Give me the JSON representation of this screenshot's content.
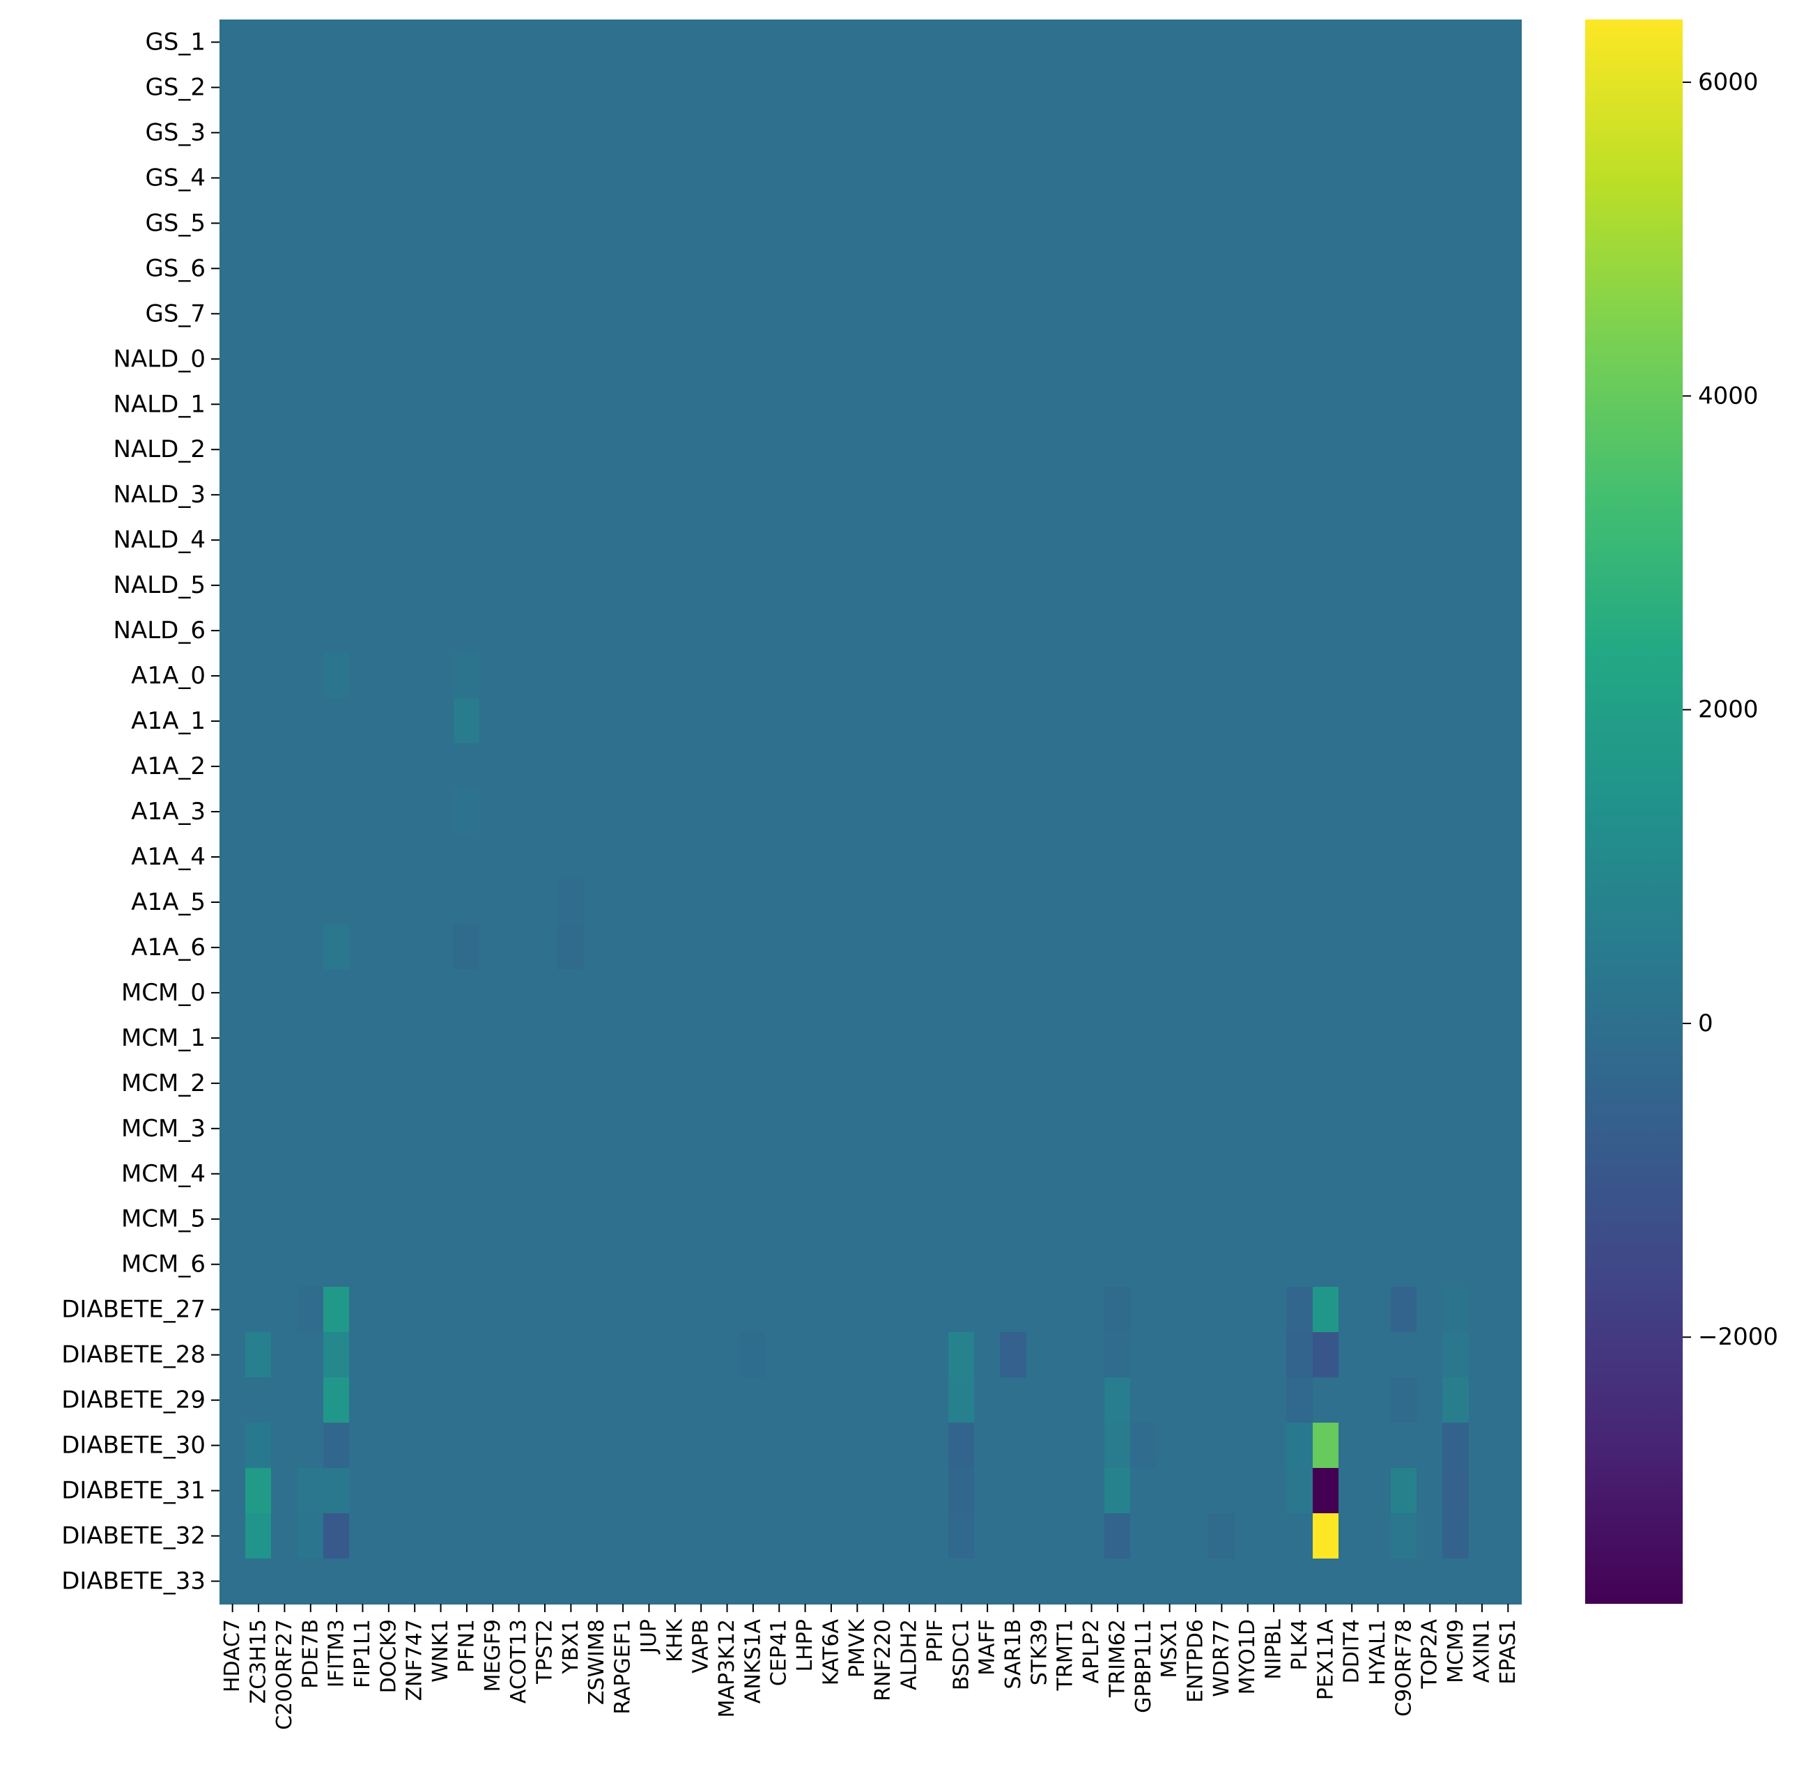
{
  "chart_data": {
    "type": "heatmap",
    "title": "",
    "xlabel": "",
    "ylabel": "",
    "colormap": "viridis",
    "vmin": -3700,
    "vmax": 6400,
    "baseline": 0,
    "colorbar": {
      "ticks": [
        -2000,
        0,
        2000,
        4000,
        6000
      ],
      "tick_labels": [
        "−2000",
        "0",
        "2000",
        "4000",
        "6000"
      ],
      "position": "right"
    },
    "rows": [
      "GS_1",
      "GS_2",
      "GS_3",
      "GS_4",
      "GS_5",
      "GS_6",
      "GS_7",
      "NALD_0",
      "NALD_1",
      "NALD_2",
      "NALD_3",
      "NALD_4",
      "NALD_5",
      "NALD_6",
      "A1A_0",
      "A1A_1",
      "A1A_2",
      "A1A_3",
      "A1A_4",
      "A1A_5",
      "A1A_6",
      "MCM_0",
      "MCM_1",
      "MCM_2",
      "MCM_3",
      "MCM_4",
      "MCM_5",
      "MCM_6",
      "DIABETE_27",
      "DIABETE_28",
      "DIABETE_29",
      "DIABETE_30",
      "DIABETE_31",
      "DIABETE_32",
      "DIABETE_33"
    ],
    "columns": [
      "HDAC7",
      "ZC3H15",
      "C20ORF27",
      "PDE7B",
      "IFITM3",
      "FIP1L1",
      "DOCK9",
      "ZNF747",
      "WNK1",
      "PFN1",
      "MEGF9",
      "ACOT13",
      "TPST2",
      "YBX1",
      "ZSWIM8",
      "RAPGEF1",
      "JUP",
      "KHK",
      "VAPB",
      "MAP3K12",
      "ANKS1A",
      "CEP41",
      "LHPP",
      "KAT6A",
      "PMVK",
      "RNF220",
      "ALDH2",
      "PPIF",
      "BSDC1",
      "MAFF",
      "SAR1B",
      "STK39",
      "TRMT1",
      "APLP2",
      "TRIM62",
      "GPBP1L1",
      "MSX1",
      "ENTPD6",
      "WDR77",
      "MYO1D",
      "NIPBL",
      "PLK4",
      "PEX11A",
      "DDIT4",
      "HYAL1",
      "C9ORF78",
      "TOP2A",
      "MCM9",
      "AXIN1",
      "EPAS1"
    ],
    "cells": [
      {
        "row": "A1A_0",
        "col": "IFITM3",
        "value": 250
      },
      {
        "row": "A1A_0",
        "col": "PFN1",
        "value": 150
      },
      {
        "row": "A1A_1",
        "col": "PFN1",
        "value": 450
      },
      {
        "row": "A1A_3",
        "col": "PFN1",
        "value": 80
      },
      {
        "row": "A1A_5",
        "col": "YBX1",
        "value": -150
      },
      {
        "row": "A1A_6",
        "col": "IFITM3",
        "value": 300
      },
      {
        "row": "A1A_6",
        "col": "PFN1",
        "value": -200
      },
      {
        "row": "A1A_6",
        "col": "YBX1",
        "value": -200
      },
      {
        "row": "DIABETE_27",
        "col": "PDE7B",
        "value": -150
      },
      {
        "row": "DIABETE_27",
        "col": "IFITM3",
        "value": 1700
      },
      {
        "row": "DIABETE_27",
        "col": "TRIM62",
        "value": -200
      },
      {
        "row": "DIABETE_27",
        "col": "PLK4",
        "value": -400
      },
      {
        "row": "DIABETE_27",
        "col": "PEX11A",
        "value": 1600
      },
      {
        "row": "DIABETE_27",
        "col": "C9ORF78",
        "value": -450
      },
      {
        "row": "DIABETE_27",
        "col": "MCM9",
        "value": 150
      },
      {
        "row": "DIABETE_28",
        "col": "ZC3H15",
        "value": 650
      },
      {
        "row": "DIABETE_28",
        "col": "IFITM3",
        "value": 1000
      },
      {
        "row": "DIABETE_28",
        "col": "ANKS1A",
        "value": -100
      },
      {
        "row": "DIABETE_28",
        "col": "BSDC1",
        "value": 800
      },
      {
        "row": "DIABETE_28",
        "col": "SAR1B",
        "value": -600
      },
      {
        "row": "DIABETE_28",
        "col": "TRIM62",
        "value": -150
      },
      {
        "row": "DIABETE_28",
        "col": "PLK4",
        "value": -450
      },
      {
        "row": "DIABETE_28",
        "col": "PEX11A",
        "value": -1000
      },
      {
        "row": "DIABETE_28",
        "col": "MCM9",
        "value": 300
      },
      {
        "row": "DIABETE_29",
        "col": "IFITM3",
        "value": 1600
      },
      {
        "row": "DIABETE_29",
        "col": "BSDC1",
        "value": 650
      },
      {
        "row": "DIABETE_29",
        "col": "TRIM62",
        "value": 550
      },
      {
        "row": "DIABETE_29",
        "col": "PLK4",
        "value": -250
      },
      {
        "row": "DIABETE_29",
        "col": "C9ORF78",
        "value": -200
      },
      {
        "row": "DIABETE_29",
        "col": "MCM9",
        "value": 600
      },
      {
        "row": "DIABETE_30",
        "col": "ZC3H15",
        "value": 400
      },
      {
        "row": "DIABETE_30",
        "col": "IFITM3",
        "value": -350
      },
      {
        "row": "DIABETE_30",
        "col": "BSDC1",
        "value": -450
      },
      {
        "row": "DIABETE_30",
        "col": "TRIM62",
        "value": 450
      },
      {
        "row": "DIABETE_30",
        "col": "GPBP1L1",
        "value": -150
      },
      {
        "row": "DIABETE_30",
        "col": "PLK4",
        "value": 400
      },
      {
        "row": "DIABETE_30",
        "col": "PEX11A",
        "value": 4000
      },
      {
        "row": "DIABETE_30",
        "col": "MCM9",
        "value": -500
      },
      {
        "row": "DIABETE_31",
        "col": "ZC3H15",
        "value": 1800
      },
      {
        "row": "DIABETE_31",
        "col": "PDE7B",
        "value": 300
      },
      {
        "row": "DIABETE_31",
        "col": "IFITM3",
        "value": 350
      },
      {
        "row": "DIABETE_31",
        "col": "BSDC1",
        "value": -350
      },
      {
        "row": "DIABETE_31",
        "col": "TRIM62",
        "value": 800
      },
      {
        "row": "DIABETE_31",
        "col": "PLK4",
        "value": 300
      },
      {
        "row": "DIABETE_31",
        "col": "PEX11A",
        "value": -3700
      },
      {
        "row": "DIABETE_31",
        "col": "C9ORF78",
        "value": 700
      },
      {
        "row": "DIABETE_31",
        "col": "MCM9",
        "value": -550
      },
      {
        "row": "DIABETE_32",
        "col": "ZC3H15",
        "value": 1500
      },
      {
        "row": "DIABETE_32",
        "col": "PDE7B",
        "value": 200
      },
      {
        "row": "DIABETE_32",
        "col": "IFITM3",
        "value": -900
      },
      {
        "row": "DIABETE_32",
        "col": "BSDC1",
        "value": -300
      },
      {
        "row": "DIABETE_32",
        "col": "TRIM62",
        "value": -450
      },
      {
        "row": "DIABETE_32",
        "col": "WDR77",
        "value": -200
      },
      {
        "row": "DIABETE_32",
        "col": "PEX11A",
        "value": 6400
      },
      {
        "row": "DIABETE_32",
        "col": "C9ORF78",
        "value": 300
      },
      {
        "row": "DIABETE_32",
        "col": "MCM9",
        "value": -500
      }
    ]
  }
}
